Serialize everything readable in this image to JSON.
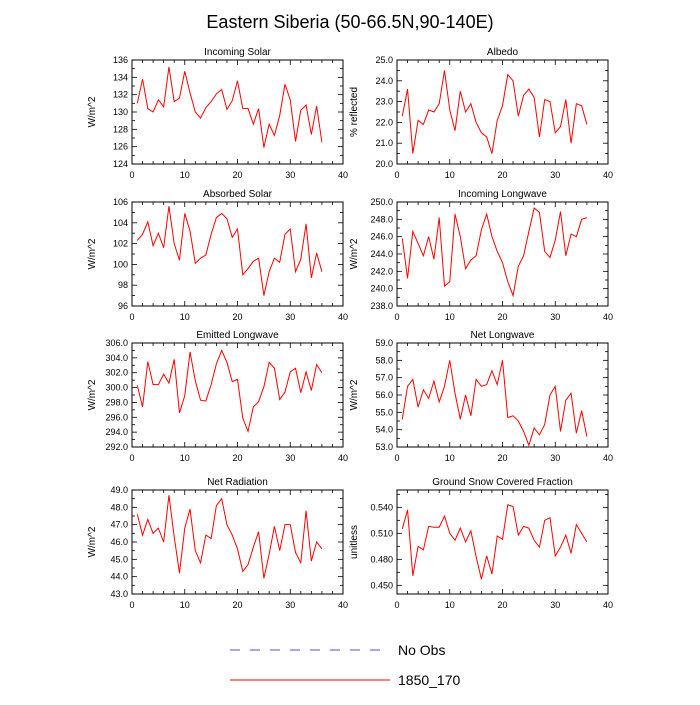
{
  "title": "Eastern Siberia (50-66.5N,90-140E)",
  "colors": {
    "series": "#ff0000",
    "obs": "#5555bb",
    "axis": "#000000"
  },
  "legend": {
    "items": [
      {
        "label": "No Obs",
        "style": "dashed",
        "color": "#5555bb"
      },
      {
        "label": "1850_170",
        "style": "solid",
        "color": "#ff0000"
      }
    ]
  },
  "chart_data": [
    {
      "type": "line",
      "title": "Incoming Solar",
      "ylabel": "W/m^2",
      "xlim": [
        0,
        40
      ],
      "xticks": [
        "0",
        "10",
        "20",
        "30",
        "40"
      ],
      "ylim": [
        124,
        136
      ],
      "yticks": [
        "124",
        "126",
        "128",
        "130",
        "132",
        "134",
        "136"
      ],
      "x": [
        1,
        2,
        3,
        4,
        5,
        6,
        7,
        8,
        9,
        10,
        11,
        12,
        13,
        14,
        15,
        16,
        17,
        18,
        19,
        20,
        21,
        22,
        23,
        24,
        25,
        26,
        27,
        28,
        29,
        30,
        31,
        32,
        33,
        34,
        35,
        36
      ],
      "values": [
        131.0,
        133.8,
        130.4,
        130.0,
        131.4,
        130.6,
        135.2,
        131.2,
        131.6,
        134.7,
        132.2,
        130.0,
        129.3,
        130.5,
        131.2,
        132.1,
        132.6,
        130.3,
        131.3,
        133.6,
        130.4,
        130.4,
        128.6,
        130.4,
        125.9,
        128.6,
        127.3,
        129.6,
        133.2,
        131.4,
        126.6,
        130.2,
        130.8,
        127.4,
        130.7,
        126.5
      ],
      "series": [
        {
          "name": "1850_170",
          "color": "#ff0000"
        }
      ]
    },
    {
      "type": "line",
      "title": "Albedo",
      "ylabel": "% reflected",
      "xlim": [
        0,
        40
      ],
      "xticks": [
        "0",
        "10",
        "20",
        "30",
        "40"
      ],
      "ylim": [
        20,
        25
      ],
      "yticks": [
        "20.0",
        "21.0",
        "22.0",
        "23.0",
        "24.0",
        "25.0"
      ],
      "x": [
        1,
        2,
        3,
        4,
        5,
        6,
        7,
        8,
        9,
        10,
        11,
        12,
        13,
        14,
        15,
        16,
        17,
        18,
        19,
        20,
        21,
        22,
        23,
        24,
        25,
        26,
        27,
        28,
        29,
        30,
        31,
        32,
        33,
        34,
        35,
        36
      ],
      "values": [
        22.3,
        23.6,
        20.5,
        22.1,
        21.9,
        22.6,
        22.5,
        22.9,
        24.5,
        22.6,
        21.6,
        23.5,
        22.5,
        22.9,
        22.0,
        21.5,
        21.3,
        20.5,
        22.1,
        22.8,
        24.3,
        24.0,
        22.3,
        23.3,
        23.6,
        23.2,
        21.3,
        23.1,
        23.0,
        21.5,
        21.8,
        23.1,
        21.0,
        22.9,
        22.8,
        21.9
      ],
      "series": [
        {
          "name": "1850_170",
          "color": "#ff0000"
        }
      ]
    },
    {
      "type": "line",
      "title": "Absorbed Solar",
      "ylabel": "W/m^2",
      "xlim": [
        0,
        40
      ],
      "xticks": [
        "0",
        "10",
        "20",
        "30",
        "40"
      ],
      "ylim": [
        96,
        106
      ],
      "yticks": [
        "96",
        "98",
        "100",
        "102",
        "104",
        "106"
      ],
      "x": [
        1,
        2,
        3,
        4,
        5,
        6,
        7,
        8,
        9,
        10,
        11,
        12,
        13,
        14,
        15,
        16,
        17,
        18,
        19,
        20,
        21,
        22,
        23,
        24,
        25,
        26,
        27,
        28,
        29,
        30,
        31,
        32,
        33,
        34,
        35,
        36
      ],
      "values": [
        102.3,
        102.9,
        104.1,
        101.8,
        103.0,
        101.6,
        105.6,
        102.0,
        100.4,
        104.9,
        103.2,
        100.1,
        100.6,
        100.9,
        102.9,
        104.5,
        104.9,
        104.4,
        102.6,
        103.4,
        99.0,
        99.6,
        100.3,
        100.6,
        97.0,
        99.3,
        100.6,
        100.2,
        102.9,
        103.4,
        99.3,
        100.5,
        103.9,
        98.7,
        101.1,
        99.3
      ],
      "series": [
        {
          "name": "1850_170",
          "color": "#ff0000"
        }
      ]
    },
    {
      "type": "line",
      "title": "Incoming Longwave",
      "ylabel": "W/m^2",
      "xlim": [
        0,
        40
      ],
      "xticks": [
        "0",
        "10",
        "20",
        "30",
        "40"
      ],
      "ylim": [
        238,
        250
      ],
      "yticks": [
        "238.0",
        "240.0",
        "242.0",
        "244.0",
        "246.0",
        "248.0",
        "250.0"
      ],
      "x": [
        1,
        2,
        3,
        4,
        5,
        6,
        7,
        8,
        9,
        10,
        11,
        12,
        13,
        14,
        15,
        16,
        17,
        18,
        19,
        20,
        21,
        22,
        23,
        24,
        25,
        26,
        27,
        28,
        29,
        30,
        31,
        32,
        33,
        34,
        35,
        36
      ],
      "values": [
        245.8,
        241.2,
        246.6,
        245.2,
        243.8,
        246.0,
        243.4,
        248.2,
        240.3,
        240.8,
        248.6,
        246.0,
        242.3,
        243.3,
        243.8,
        246.8,
        248.6,
        246.0,
        244.3,
        243.0,
        240.8,
        239.2,
        242.6,
        243.8,
        246.6,
        249.3,
        248.8,
        244.3,
        243.6,
        245.6,
        248.9,
        243.8,
        246.3,
        246.0,
        248.0,
        248.2
      ],
      "series": [
        {
          "name": "1850_170",
          "color": "#ff0000"
        }
      ]
    },
    {
      "type": "line",
      "title": "Emitted Longwave",
      "ylabel": "W/m^2",
      "xlim": [
        0,
        40
      ],
      "xticks": [
        "0",
        "10",
        "20",
        "30",
        "40"
      ],
      "ylim": [
        292,
        306
      ],
      "yticks": [
        "292.0",
        "294.0",
        "296.0",
        "298.0",
        "300.0",
        "302.0",
        "304.0",
        "306.0"
      ],
      "x": [
        1,
        2,
        3,
        4,
        5,
        6,
        7,
        8,
        9,
        10,
        11,
        12,
        13,
        14,
        15,
        16,
        17,
        18,
        19,
        20,
        21,
        22,
        23,
        24,
        25,
        26,
        27,
        28,
        29,
        30,
        31,
        32,
        33,
        34,
        35,
        36
      ],
      "values": [
        300.3,
        297.4,
        303.5,
        300.4,
        300.4,
        301.8,
        300.6,
        303.8,
        296.6,
        298.9,
        304.8,
        300.9,
        298.3,
        298.2,
        300.4,
        303.2,
        305.0,
        303.4,
        300.8,
        301.1,
        295.9,
        294.1,
        297.4,
        298.1,
        300.1,
        303.4,
        302.6,
        298.4,
        299.4,
        302.1,
        302.6,
        299.3,
        302.1,
        299.6,
        303.1,
        302.0
      ],
      "series": [
        {
          "name": "1850_170",
          "color": "#ff0000"
        }
      ]
    },
    {
      "type": "line",
      "title": "Net Longwave",
      "ylabel": "W/m^2",
      "xlim": [
        0,
        40
      ],
      "xticks": [
        "0",
        "10",
        "20",
        "30",
        "40"
      ],
      "ylim": [
        53,
        59
      ],
      "yticks": [
        "53.0",
        "54.0",
        "55.0",
        "56.0",
        "57.0",
        "58.0",
        "59.0"
      ],
      "x": [
        1,
        2,
        3,
        4,
        5,
        6,
        7,
        8,
        9,
        10,
        11,
        12,
        13,
        14,
        15,
        16,
        17,
        18,
        19,
        20,
        21,
        22,
        23,
        24,
        25,
        26,
        27,
        28,
        29,
        30,
        31,
        32,
        33,
        34,
        35,
        36
      ],
      "values": [
        54.6,
        56.5,
        56.9,
        55.3,
        56.3,
        55.8,
        56.8,
        55.6,
        56.5,
        58.0,
        56.1,
        54.6,
        56.0,
        54.8,
        56.9,
        56.5,
        56.6,
        57.4,
        56.6,
        58.0,
        54.7,
        54.8,
        54.5,
        53.9,
        53.1,
        54.1,
        53.7,
        54.3,
        56.0,
        56.5,
        53.9,
        55.7,
        56.1,
        53.8,
        55.1,
        53.6
      ],
      "series": [
        {
          "name": "1850_170",
          "color": "#ff0000"
        }
      ]
    },
    {
      "type": "line",
      "title": "Net Radiation",
      "ylabel": "W/m^2",
      "xlim": [
        0,
        40
      ],
      "xticks": [
        "0",
        "10",
        "20",
        "30",
        "40"
      ],
      "ylim": [
        43,
        49
      ],
      "yticks": [
        "43.0",
        "44.0",
        "45.0",
        "46.0",
        "47.0",
        "48.0",
        "49.0"
      ],
      "x": [
        1,
        2,
        3,
        4,
        5,
        6,
        7,
        8,
        9,
        10,
        11,
        12,
        13,
        14,
        15,
        16,
        17,
        18,
        19,
        20,
        21,
        22,
        23,
        24,
        25,
        26,
        27,
        28,
        29,
        30,
        31,
        32,
        33,
        34,
        35,
        36
      ],
      "values": [
        47.6,
        46.4,
        47.3,
        46.5,
        46.8,
        46.0,
        48.7,
        46.3,
        44.2,
        46.8,
        47.9,
        45.5,
        44.8,
        46.4,
        46.2,
        48.1,
        48.5,
        47.0,
        46.4,
        45.6,
        44.3,
        44.7,
        45.7,
        46.6,
        43.9,
        45.3,
        46.9,
        45.5,
        47.0,
        47.0,
        45.4,
        44.8,
        47.8,
        44.9,
        46.0,
        45.6
      ],
      "series": [
        {
          "name": "1850_170",
          "color": "#ff0000"
        }
      ]
    },
    {
      "type": "line",
      "title": "Ground Snow Covered Fraction",
      "ylabel": "unitless",
      "xlim": [
        0,
        40
      ],
      "xticks": [
        "0",
        "10",
        "20",
        "30",
        "40"
      ],
      "ylim": [
        0.44,
        0.56
      ],
      "yticks": [
        "0.450",
        "0.480",
        "0.510",
        "0.540"
      ],
      "x": [
        1,
        2,
        3,
        4,
        5,
        6,
        7,
        8,
        9,
        10,
        11,
        12,
        13,
        14,
        15,
        16,
        17,
        18,
        19,
        20,
        21,
        22,
        23,
        24,
        25,
        26,
        27,
        28,
        29,
        30,
        31,
        32,
        33,
        34,
        35,
        36
      ],
      "values": [
        0.515,
        0.537,
        0.461,
        0.495,
        0.491,
        0.518,
        0.517,
        0.517,
        0.53,
        0.51,
        0.502,
        0.516,
        0.5,
        0.513,
        0.483,
        0.457,
        0.484,
        0.463,
        0.507,
        0.503,
        0.543,
        0.541,
        0.508,
        0.518,
        0.516,
        0.502,
        0.494,
        0.525,
        0.528,
        0.484,
        0.494,
        0.508,
        0.487,
        0.52,
        0.51,
        0.5
      ],
      "series": [
        {
          "name": "1850_170",
          "color": "#ff0000"
        }
      ]
    }
  ]
}
